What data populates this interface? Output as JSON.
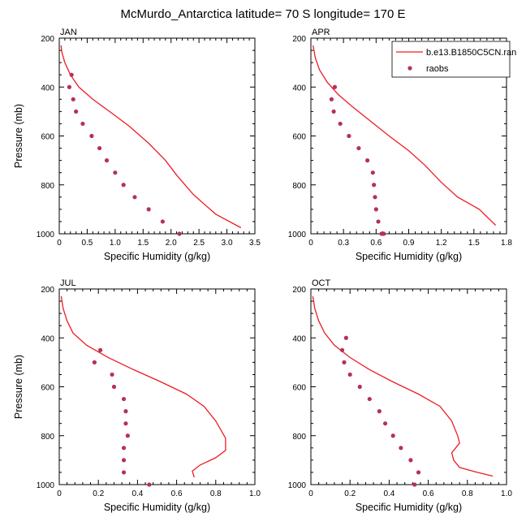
{
  "figure": {
    "title": "McMurdo_Antarctica  latitude= 70 S longitude= 170 E"
  },
  "legend": {
    "placement": "top-right of APR panel",
    "entries": [
      {
        "label": "b.e13.B1850C5CN.ran",
        "style": "line",
        "color": "#ee1c24"
      },
      {
        "label": "raobs",
        "style": "marker",
        "color": "#b5305a"
      }
    ]
  },
  "chart_data": [
    {
      "panel": "JAN",
      "type": "line",
      "title": "JAN",
      "xlabel": "Specific Humidity (g/kg)",
      "ylabel": "Pressure (mb)",
      "xlim": [
        0,
        3.5
      ],
      "ylim": [
        1000,
        200
      ],
      "xticks": [
        0,
        0.5,
        1,
        1.5,
        2,
        2.5,
        3,
        3.5
      ],
      "xtick_labels": [
        "0",
        "0.5",
        "1.0",
        "1.5",
        "2.0",
        "2.5",
        "3.0",
        "3.5"
      ],
      "yticks": [
        200,
        400,
        600,
        800,
        1000
      ],
      "ytick_labels": [
        "200",
        "400",
        "600",
        "800",
        "1000"
      ],
      "series": [
        {
          "name": "b.e13.B1850C5CN.ran",
          "kind": "line",
          "x": [
            0.03,
            0.05,
            0.1,
            0.2,
            0.35,
            0.6,
            0.9,
            1.25,
            1.6,
            1.9,
            2.1,
            2.4,
            2.8,
            3.25
          ],
          "y": [
            230,
            260,
            300,
            350,
            400,
            450,
            500,
            560,
            630,
            700,
            760,
            840,
            920,
            975
          ]
        },
        {
          "name": "raobs",
          "kind": "scatter",
          "x": [
            0.22,
            0.18,
            0.25,
            0.3,
            0.42,
            0.58,
            0.72,
            0.85,
            1.0,
            1.15,
            1.35,
            1.6,
            1.85,
            2.15
          ],
          "y": [
            350,
            400,
            450,
            500,
            550,
            600,
            650,
            700,
            750,
            800,
            850,
            900,
            950,
            1000
          ]
        }
      ]
    },
    {
      "panel": "APR",
      "type": "line",
      "title": "APR",
      "xlabel": "Specific Humidity (g/kg)",
      "ylabel": "",
      "xlim": [
        0,
        1.8
      ],
      "ylim": [
        1000,
        200
      ],
      "xticks": [
        0,
        0.3,
        0.6,
        0.9,
        1.2,
        1.5,
        1.8
      ],
      "xtick_labels": [
        "0",
        "0.3",
        "0.6",
        "0.9",
        "1.2",
        "1.5",
        "1.8"
      ],
      "yticks": [
        200,
        400,
        600,
        800,
        1000
      ],
      "ytick_labels": [
        "200",
        "400",
        "600",
        "800",
        "1000"
      ],
      "series": [
        {
          "name": "b.e13.B1850C5CN.ran",
          "kind": "line",
          "x": [
            0.02,
            0.04,
            0.08,
            0.15,
            0.25,
            0.38,
            0.55,
            0.72,
            0.9,
            1.05,
            1.2,
            1.35,
            1.55,
            1.7
          ],
          "y": [
            230,
            280,
            330,
            380,
            430,
            480,
            540,
            600,
            660,
            720,
            790,
            850,
            900,
            965
          ]
        },
        {
          "name": "raobs",
          "kind": "scatter",
          "x": [
            0.22,
            0.19,
            0.21,
            0.27,
            0.35,
            0.44,
            0.52,
            0.57,
            0.58,
            0.59,
            0.6,
            0.62,
            0.65,
            0.67
          ],
          "y": [
            400,
            450,
            500,
            550,
            600,
            650,
            700,
            750,
            800,
            850,
            900,
            950,
            1000,
            1000
          ]
        }
      ]
    },
    {
      "panel": "JUL",
      "type": "line",
      "title": "JUL",
      "xlabel": "Specific Humidity (g/kg)",
      "ylabel": "Pressure (mb)",
      "xlim": [
        0,
        1.0
      ],
      "ylim": [
        1000,
        200
      ],
      "xticks": [
        0,
        0.2,
        0.4,
        0.6,
        0.8,
        1.0
      ],
      "xtick_labels": [
        "0",
        "0.2",
        "0.4",
        "0.6",
        "0.8",
        "1.0"
      ],
      "yticks": [
        200,
        400,
        600,
        800,
        1000
      ],
      "ytick_labels": [
        "200",
        "400",
        "600",
        "800",
        "1000"
      ],
      "series": [
        {
          "name": "b.e13.B1850C5CN.ran",
          "kind": "line",
          "x": [
            0.01,
            0.02,
            0.04,
            0.07,
            0.14,
            0.25,
            0.38,
            0.52,
            0.65,
            0.74,
            0.8,
            0.85,
            0.85,
            0.8,
            0.72,
            0.68,
            0.69
          ],
          "y": [
            230,
            280,
            330,
            380,
            430,
            480,
            530,
            580,
            630,
            680,
            740,
            810,
            860,
            890,
            920,
            945,
            970
          ]
        },
        {
          "name": "raobs",
          "kind": "scatter",
          "x": [
            0.21,
            0.18,
            0.27,
            0.28,
            0.33,
            0.34,
            0.34,
            0.35,
            0.33,
            0.33,
            0.33,
            0.46
          ],
          "y": [
            450,
            500,
            550,
            600,
            650,
            700,
            750,
            800,
            850,
            900,
            950,
            1000
          ]
        }
      ]
    },
    {
      "panel": "OCT",
      "type": "line",
      "title": "OCT",
      "xlabel": "Specific Humidity (g/kg)",
      "ylabel": "",
      "xlim": [
        0,
        1.0
      ],
      "ylim": [
        1000,
        200
      ],
      "xticks": [
        0,
        0.2,
        0.4,
        0.6,
        0.8,
        1.0
      ],
      "xtick_labels": [
        "0",
        "0.2",
        "0.4",
        "0.6",
        "0.8",
        "1.0"
      ],
      "yticks": [
        200,
        400,
        600,
        800,
        1000
      ],
      "ytick_labels": [
        "200",
        "400",
        "600",
        "800",
        "1000"
      ],
      "series": [
        {
          "name": "b.e13.B1850C5CN.ran",
          "kind": "line",
          "x": [
            0.01,
            0.02,
            0.04,
            0.07,
            0.12,
            0.2,
            0.3,
            0.42,
            0.55,
            0.66,
            0.72,
            0.75,
            0.76,
            0.72,
            0.73,
            0.76,
            0.85,
            0.93
          ],
          "y": [
            230,
            280,
            330,
            380,
            430,
            480,
            530,
            580,
            630,
            680,
            740,
            800,
            830,
            870,
            900,
            930,
            950,
            965
          ]
        },
        {
          "name": "raobs",
          "kind": "scatter",
          "x": [
            0.18,
            0.16,
            0.17,
            0.2,
            0.25,
            0.3,
            0.35,
            0.38,
            0.42,
            0.46,
            0.51,
            0.55,
            0.53
          ],
          "y": [
            400,
            450,
            500,
            550,
            600,
            650,
            700,
            750,
            800,
            850,
            900,
            950,
            1000
          ]
        }
      ]
    }
  ]
}
